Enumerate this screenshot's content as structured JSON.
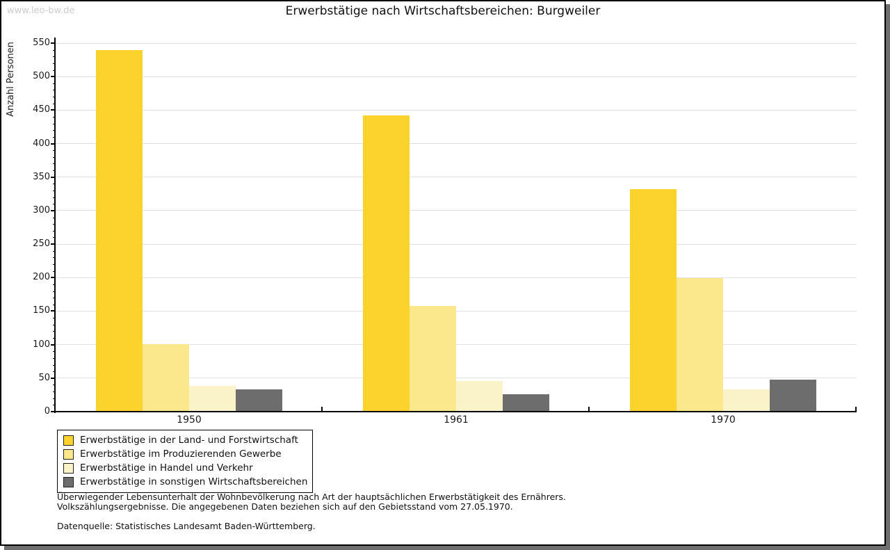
{
  "watermark": "www.leo-bw.de",
  "chart_data": {
    "type": "bar",
    "title": "Erwerbstätige nach Wirtschaftsbereichen: Burgweiler",
    "ylabel": "Anzahl Personen",
    "xlabel": "",
    "ylim": [
      0,
      550
    ],
    "ytick_step": 50,
    "ytick_minor_step": 10,
    "grid": "horizontal",
    "legend_position": "bottom-left",
    "categories": [
      "1950",
      "1961",
      "1970"
    ],
    "series": [
      {
        "name": "Erwerbstätige in der Land- und Forstwirtschaft",
        "color": "#FCD32D",
        "values": [
          540,
          442,
          332
        ]
      },
      {
        "name": "Erwerbstätige im Produzierenden Gewerbe",
        "color": "#FBE88D",
        "values": [
          101,
          158,
          199
        ]
      },
      {
        "name": "Erwerbstätige in Handel und Verkehr",
        "color": "#FBF3C8",
        "values": [
          38,
          46,
          33
        ]
      },
      {
        "name": "Erwerbstätige in sonstigen Wirtschaftsbereichen",
        "color": "#6D6D6D",
        "values": [
          33,
          26,
          48
        ]
      }
    ]
  },
  "footnote": {
    "line1": "Überwiegender Lebensunterhalt der Wohnbevölkerung nach Art der hauptsächlichen Erwerbstätigkeit des Ernährers.",
    "line2": "Volkszählungsergebnisse. Die angegebenen Daten beziehen sich auf den Gebietsstand vom 27.05.1970.",
    "source": "Datenquelle: Statistisches Landesamt Baden-Württemberg."
  },
  "colors": {
    "grid": "#E0E0E0",
    "axis": "#000000",
    "text": "#111111",
    "watermark": "#CCCCCC",
    "page_shadow": "#6E6E6E"
  }
}
